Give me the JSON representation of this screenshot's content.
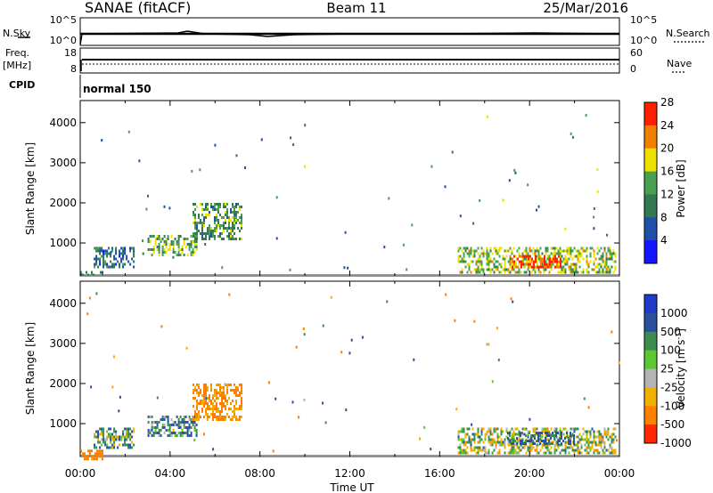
{
  "header": {
    "station": "SANAE (fitACF)",
    "beam": "Beam 11",
    "date": "25/Mar/2016"
  },
  "noise_panel": {
    "left_label": "N.Sky",
    "right_label": "N.Search",
    "left_ticks": [
      "10^5",
      "10^0"
    ],
    "right_ticks": [
      "10^5",
      "10^0"
    ]
  },
  "freq_panel": {
    "left_label_1": "Freq.",
    "left_label_2": "[MHz]",
    "right_label": "Nave",
    "left_ticks": [
      "18",
      "8"
    ],
    "right_ticks": [
      "60",
      "0"
    ]
  },
  "cpid_panel": {
    "label": "CPID",
    "mode": "normal 150"
  },
  "colors": {
    "power_scale": [
      "#1515ff",
      "#1e50a8",
      "#327850",
      "#49a050",
      "#f0e000",
      "#f08000",
      "#ff2000"
    ],
    "velocity_scale": [
      "#1e3cc8",
      "#2a50a0",
      "#3c8c50",
      "#5ac830",
      "#b4b4b4",
      "#f0b000",
      "#ff8000",
      "#ff2800"
    ]
  },
  "chart_data": [
    {
      "type": "heatmap",
      "name": "power",
      "xlabel": "",
      "ylabel": "Slant Range [km]",
      "yticks": [
        "1000",
        "2000",
        "3000",
        "4000"
      ],
      "ylim": [
        180,
        4550
      ],
      "xlim": [
        0,
        24
      ],
      "colorbar": {
        "label": "Power [dB]",
        "ticks": [
          "4",
          "8",
          "12",
          "16",
          "20",
          "24",
          "28"
        ]
      },
      "regions": [
        {
          "t_start": 0.0,
          "t_end": 1.0,
          "r_start": 200,
          "r_end": 300,
          "value": 10
        },
        {
          "t_start": 0.6,
          "t_end": 2.4,
          "r_start": 400,
          "r_end": 900,
          "value": 8
        },
        {
          "t_start": 3.0,
          "t_end": 5.2,
          "r_start": 700,
          "r_end": 1200,
          "value": 14
        },
        {
          "t_start": 5.0,
          "t_end": 7.2,
          "r_start": 1100,
          "r_end": 2000,
          "value": 12
        },
        {
          "t_start": 16.8,
          "t_end": 23.8,
          "r_start": 300,
          "r_end": 900,
          "value": 16
        },
        {
          "t_start": 19.2,
          "t_end": 21.4,
          "r_start": 400,
          "r_end": 700,
          "value": 24
        }
      ]
    },
    {
      "type": "heatmap",
      "name": "velocity",
      "xlabel": "Time UT",
      "ylabel": "Slant Range [km]",
      "xticks": [
        "00:00",
        "04:00",
        "08:00",
        "12:00",
        "16:00",
        "20:00",
        "00:00"
      ],
      "yticks": [
        "1000",
        "2000",
        "3000",
        "4000"
      ],
      "ylim": [
        180,
        4550
      ],
      "xlim": [
        0,
        24
      ],
      "colorbar": {
        "label": "Velocity [m s^-1]",
        "ticks": [
          "1000",
          "500",
          "100",
          "25",
          "-25",
          "-100",
          "-500",
          "-1000"
        ]
      },
      "regions": [
        {
          "t_start": 0.0,
          "t_end": 1.0,
          "r_start": 150,
          "r_end": 350,
          "value": -200
        },
        {
          "t_start": 0.6,
          "t_end": 2.4,
          "r_start": 400,
          "r_end": 900,
          "value": 60
        },
        {
          "t_start": 3.0,
          "t_end": 5.2,
          "r_start": 700,
          "r_end": 1200,
          "value": 80
        },
        {
          "t_start": 5.0,
          "t_end": 7.2,
          "r_start": 1100,
          "r_end": 2000,
          "value": -150
        },
        {
          "t_start": 16.8,
          "t_end": 23.8,
          "r_start": 300,
          "r_end": 900,
          "value": 0
        },
        {
          "t_start": 19.0,
          "t_end": 22.0,
          "r_start": 500,
          "r_end": 800,
          "value": 150
        }
      ]
    }
  ]
}
